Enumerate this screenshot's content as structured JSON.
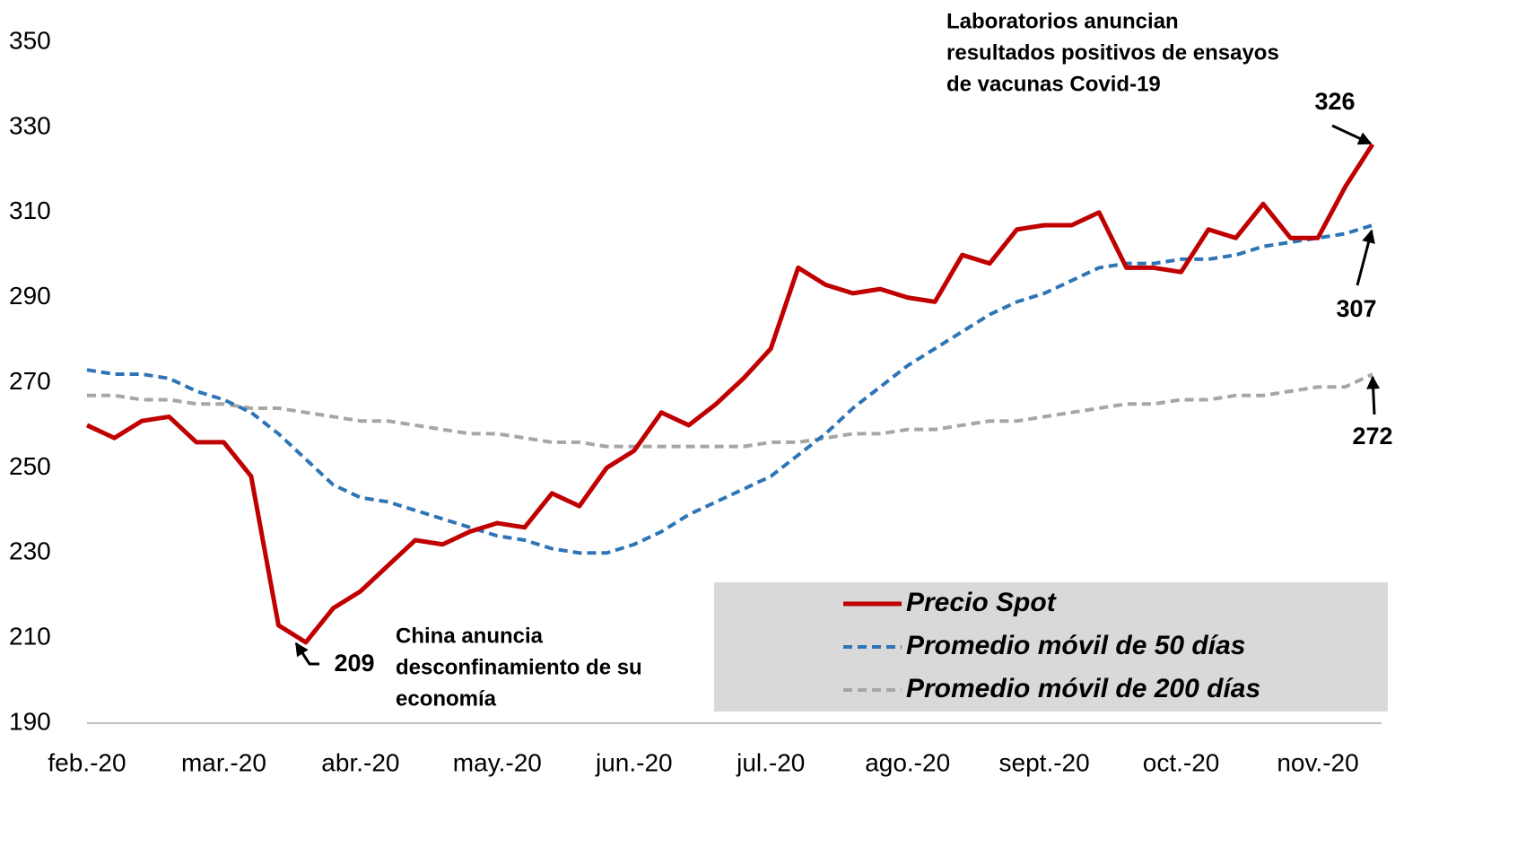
{
  "chart_data": {
    "type": "line",
    "categories": [
      "feb.-20",
      null,
      null,
      null,
      null,
      "mar.-20",
      null,
      null,
      null,
      null,
      "abr.-20",
      null,
      null,
      null,
      null,
      "may.-20",
      null,
      null,
      null,
      null,
      "jun.-20",
      null,
      null,
      null,
      null,
      "jul.-20",
      null,
      null,
      null,
      null,
      "ago.-20",
      null,
      null,
      null,
      null,
      "sept.-20",
      null,
      null,
      null,
      null,
      "oct.-20",
      null,
      null,
      null,
      null,
      "nov.-20",
      null,
      null
    ],
    "series": [
      {
        "name": "Precio Spot",
        "color": "#c00000",
        "dash": "solid",
        "values": [
          260,
          257,
          261,
          262,
          256,
          256,
          248,
          213,
          209,
          217,
          221,
          227,
          233,
          232,
          235,
          237,
          236,
          244,
          241,
          250,
          254,
          263,
          260,
          265,
          271,
          278,
          297,
          293,
          291,
          292,
          290,
          289,
          300,
          298,
          306,
          307,
          307,
          310,
          297,
          297,
          296,
          306,
          304,
          312,
          304,
          304,
          316,
          326
        ]
      },
      {
        "name": "Promedio móvil de 50 días",
        "color": "#2e75b6",
        "dash": "dashed",
        "values": [
          273,
          272,
          272,
          271,
          268,
          266,
          263,
          258,
          252,
          246,
          243,
          242,
          240,
          238,
          236,
          234,
          233,
          231,
          230,
          230,
          232,
          235,
          239,
          242,
          245,
          248,
          253,
          258,
          264,
          269,
          274,
          278,
          282,
          286,
          289,
          291,
          294,
          297,
          298,
          298,
          299,
          299,
          300,
          302,
          303,
          304,
          305,
          307
        ]
      },
      {
        "name": "Promedio móvil de 200 días",
        "color": "#a6a6a6",
        "dash": "dashed",
        "values": [
          267,
          267,
          266,
          266,
          265,
          265,
          264,
          264,
          263,
          262,
          261,
          261,
          260,
          259,
          258,
          258,
          257,
          256,
          256,
          255,
          255,
          255,
          255,
          255,
          255,
          256,
          256,
          257,
          258,
          258,
          259,
          259,
          260,
          261,
          261,
          262,
          263,
          264,
          265,
          265,
          266,
          266,
          267,
          267,
          268,
          269,
          269,
          272
        ]
      }
    ],
    "ylim": [
      190,
      350
    ],
    "yticks": [
      190,
      210,
      230,
      250,
      270,
      290,
      310,
      330,
      350
    ],
    "grid": false,
    "legend": "lower right",
    "annotations": [
      {
        "lines": [
          "Laboratorios anuncian",
          "resultados positivos de ensayos",
          "de vacunas Covid-19"
        ]
      },
      {
        "lines": [
          "China anuncia",
          "desconfinamiento de su",
          "economía"
        ]
      },
      {
        "lines": [
          "326"
        ]
      },
      {
        "lines": [
          "307"
        ]
      },
      {
        "lines": [
          "272"
        ]
      },
      {
        "lines": [
          "209"
        ]
      }
    ]
  }
}
